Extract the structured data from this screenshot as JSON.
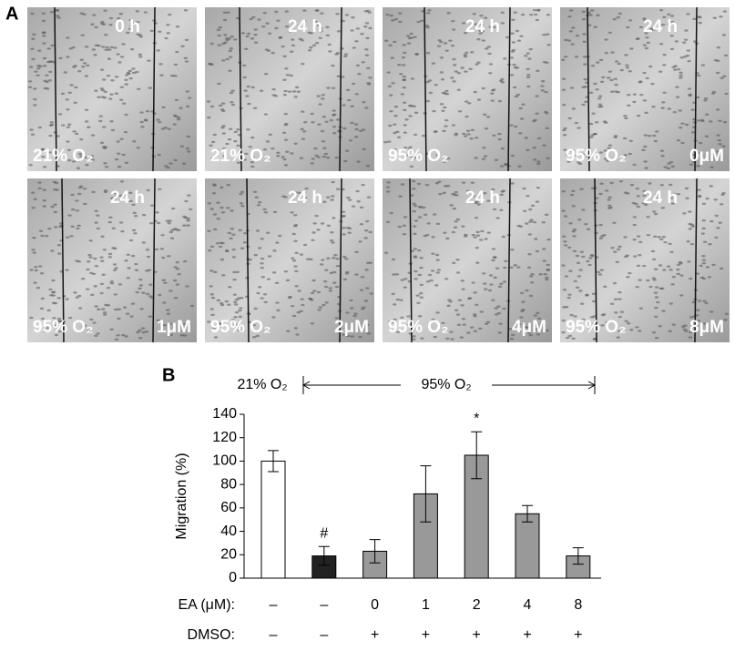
{
  "panel_a": {
    "label": "A",
    "tiles": [
      {
        "time": "0 h",
        "condition": "21% O₂"
      },
      {
        "time": "24 h",
        "condition": "21% O₂"
      },
      {
        "time": "24 h",
        "condition": "95% O₂"
      },
      {
        "time": "24 h",
        "condition": "95% O₂",
        "dose": "0μM"
      },
      {
        "time": "24 h",
        "condition": "95% O₂",
        "dose": "1μM"
      },
      {
        "time": "24 h",
        "condition": "95% O₂",
        "dose": "2μM"
      },
      {
        "time": "24 h",
        "condition": "95% O₂",
        "dose": "4μM"
      },
      {
        "time": "24 h",
        "condition": "95% O₂",
        "dose": "8μM"
      }
    ]
  },
  "chart_data": {
    "type": "bar",
    "panel_label": "B",
    "header": {
      "left": "21% O₂",
      "right": "95% O₂"
    },
    "y_label": "Migration (%)",
    "ylim": [
      0,
      140
    ],
    "yticks": [
      0,
      20,
      40,
      60,
      80,
      100,
      120,
      140
    ],
    "series": [
      {
        "values": [
          100,
          19,
          23,
          72,
          105,
          55,
          19
        ],
        "errors": [
          9,
          8,
          10,
          24,
          20,
          7,
          7
        ],
        "colors": [
          "#ffffff",
          "#222222",
          "#999999",
          "#999999",
          "#999999",
          "#999999",
          "#999999"
        ],
        "markers": [
          null,
          "#",
          null,
          null,
          "*",
          null,
          null
        ]
      }
    ],
    "rows": [
      {
        "label": "EA (μM):",
        "cells": [
          "–",
          "–",
          "0",
          "1",
          "2",
          "4",
          "8"
        ]
      },
      {
        "label": "DMSO:",
        "cells": [
          "–",
          "–",
          "+",
          "+",
          "+",
          "+",
          "+"
        ]
      }
    ]
  }
}
